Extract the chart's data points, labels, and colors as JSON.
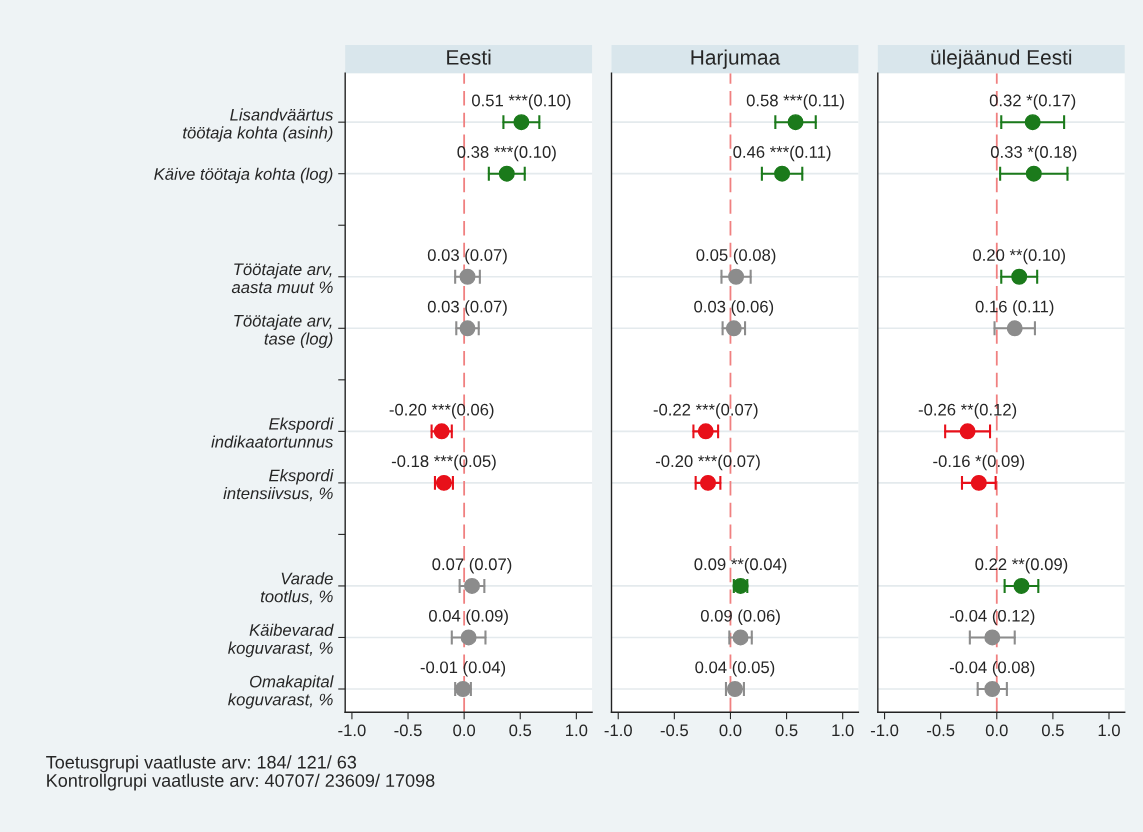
{
  "chart_data": [
    {
      "type": "scatter",
      "orientation": "horizontal",
      "title": "Eesti",
      "categories": [
        "Lisandväärtus\ntöötaja kohta (asinh)",
        "Käive töötaja kohta (log)",
        null,
        "Töötajate arv,\naasta muut %",
        "Töötajate arv,\ntase (log)",
        null,
        "Ekspordi\nindikaatortunnus",
        "Ekspordi\nintensiivsus, %",
        null,
        "Varade\ntootlus, %",
        "Käibevarad\nkoguvarast, %",
        "Omakapital\nkoguvarast, %"
      ],
      "values": [
        0.51,
        0.38,
        null,
        0.03,
        0.03,
        null,
        -0.2,
        -0.18,
        null,
        0.07,
        0.04,
        -0.01
      ],
      "errors": [
        0.16,
        0.16,
        null,
        0.11,
        0.1,
        null,
        0.09,
        0.08,
        null,
        0.11,
        0.15,
        0.07
      ],
      "colors": [
        "#1b7a1b",
        "#1b7a1b",
        null,
        "#8c8c8c",
        "#8c8c8c",
        null,
        "#e8101a",
        "#e8101a",
        null,
        "#8c8c8c",
        "#8c8c8c",
        "#8c8c8c"
      ],
      "value_labels": [
        "0.51 ***(0.10)",
        "0.38 ***(0.10)",
        null,
        "0.03 (0.07)",
        "0.03 (0.07)",
        null,
        "-0.20 ***(0.06)",
        "-0.18 ***(0.05)",
        null,
        "0.07 (0.07)",
        "0.04 (0.09)",
        "-0.01 (0.04)"
      ],
      "xlim": [
        -1.06,
        1.14
      ],
      "xticks": [
        {
          "value": -1.0,
          "label": "-1.0"
        },
        {
          "value": -0.5,
          "label": "-0.5"
        },
        {
          "value": 0.0,
          "label": "0.0"
        },
        {
          "value": 0.5,
          "label": "0.5"
        },
        {
          "value": 1.0,
          "label": "1.0"
        }
      ],
      "ref_lines": [
        {
          "axis": "x",
          "value": 0,
          "color": "#f08080",
          "line_style": "dashed"
        }
      ],
      "grid": "y",
      "marker": "circle",
      "annotations": [
        "Toetusgrupi vaatluste arv: 184/ 121/ 63",
        "Kontrollgrupi vaatluste arv: 40707/ 23609/ 17098"
      ]
    },
    {
      "type": "scatter",
      "orientation": "horizontal",
      "title": "Harjumaa",
      "categories": [
        null,
        null,
        null,
        null,
        null,
        null,
        null,
        null,
        null,
        null,
        null,
        null
      ],
      "values": [
        0.58,
        0.46,
        null,
        0.05,
        0.03,
        null,
        -0.22,
        -0.2,
        null,
        0.09,
        0.09,
        0.04
      ],
      "errors": [
        0.18,
        0.18,
        null,
        0.13,
        0.1,
        null,
        0.11,
        0.11,
        null,
        0.06,
        0.1,
        0.08
      ],
      "colors": [
        "#1b7a1b",
        "#1b7a1b",
        null,
        "#8c8c8c",
        "#8c8c8c",
        null,
        "#e8101a",
        "#e8101a",
        null,
        "#1b7a1b",
        "#8c8c8c",
        "#8c8c8c"
      ],
      "value_labels": [
        "0.58 ***(0.11)",
        "0.46 ***(0.11)",
        null,
        "0.05 (0.08)",
        "0.03 (0.06)",
        null,
        "-0.22 ***(0.07)",
        "-0.20 ***(0.07)",
        null,
        "0.09 **(0.04)",
        "0.09 (0.06)",
        "0.04 (0.05)"
      ],
      "xlim": [
        -1.06,
        1.14
      ],
      "xticks": [
        {
          "value": -1.0,
          "label": "-1.0"
        },
        {
          "value": -0.5,
          "label": "-0.5"
        },
        {
          "value": 0.0,
          "label": "0.0"
        },
        {
          "value": 0.5,
          "label": "0.5"
        },
        {
          "value": 1.0,
          "label": "1.0"
        }
      ],
      "ref_lines": [
        {
          "axis": "x",
          "value": 0,
          "color": "#f08080",
          "line_style": "dashed"
        }
      ],
      "grid": "y",
      "marker": "circle",
      "tick_labels": "x"
    },
    {
      "type": "scatter",
      "orientation": "horizontal",
      "title": "ülejäänud Eesti",
      "categories": [
        null,
        null,
        null,
        null,
        null,
        null,
        null,
        null,
        null,
        null,
        null,
        null
      ],
      "values": [
        0.32,
        0.33,
        null,
        0.2,
        0.16,
        null,
        -0.26,
        -0.16,
        null,
        0.22,
        -0.04,
        -0.04
      ],
      "errors": [
        0.28,
        0.3,
        null,
        0.16,
        0.18,
        null,
        0.2,
        0.15,
        null,
        0.15,
        0.2,
        0.13
      ],
      "colors": [
        "#1b7a1b",
        "#1b7a1b",
        null,
        "#1b7a1b",
        "#8c8c8c",
        null,
        "#e8101a",
        "#e8101a",
        null,
        "#1b7a1b",
        "#8c8c8c",
        "#8c8c8c"
      ],
      "value_labels": [
        "0.32 *(0.17)",
        "0.33 *(0.18)",
        null,
        "0.20 **(0.10)",
        "0.16 (0.11)",
        null,
        "-0.26 **(0.12)",
        "-0.16 *(0.09)",
        null,
        "0.22 **(0.09)",
        "-0.04 (0.12)",
        "-0.04 (0.08)"
      ],
      "xlim": [
        -1.06,
        1.14
      ],
      "xticks": [
        {
          "value": -1.0,
          "label": "-1.0"
        },
        {
          "value": -0.5,
          "label": "-0.5"
        },
        {
          "value": 0.0,
          "label": "0.0"
        },
        {
          "value": 0.5,
          "label": "0.5"
        },
        {
          "value": 1.0,
          "label": "1.0"
        }
      ],
      "ref_lines": [
        {
          "axis": "x",
          "value": 0,
          "color": "#f08080",
          "line_style": "dashed"
        }
      ],
      "grid": "y",
      "marker": "circle",
      "tick_labels": "x"
    }
  ]
}
